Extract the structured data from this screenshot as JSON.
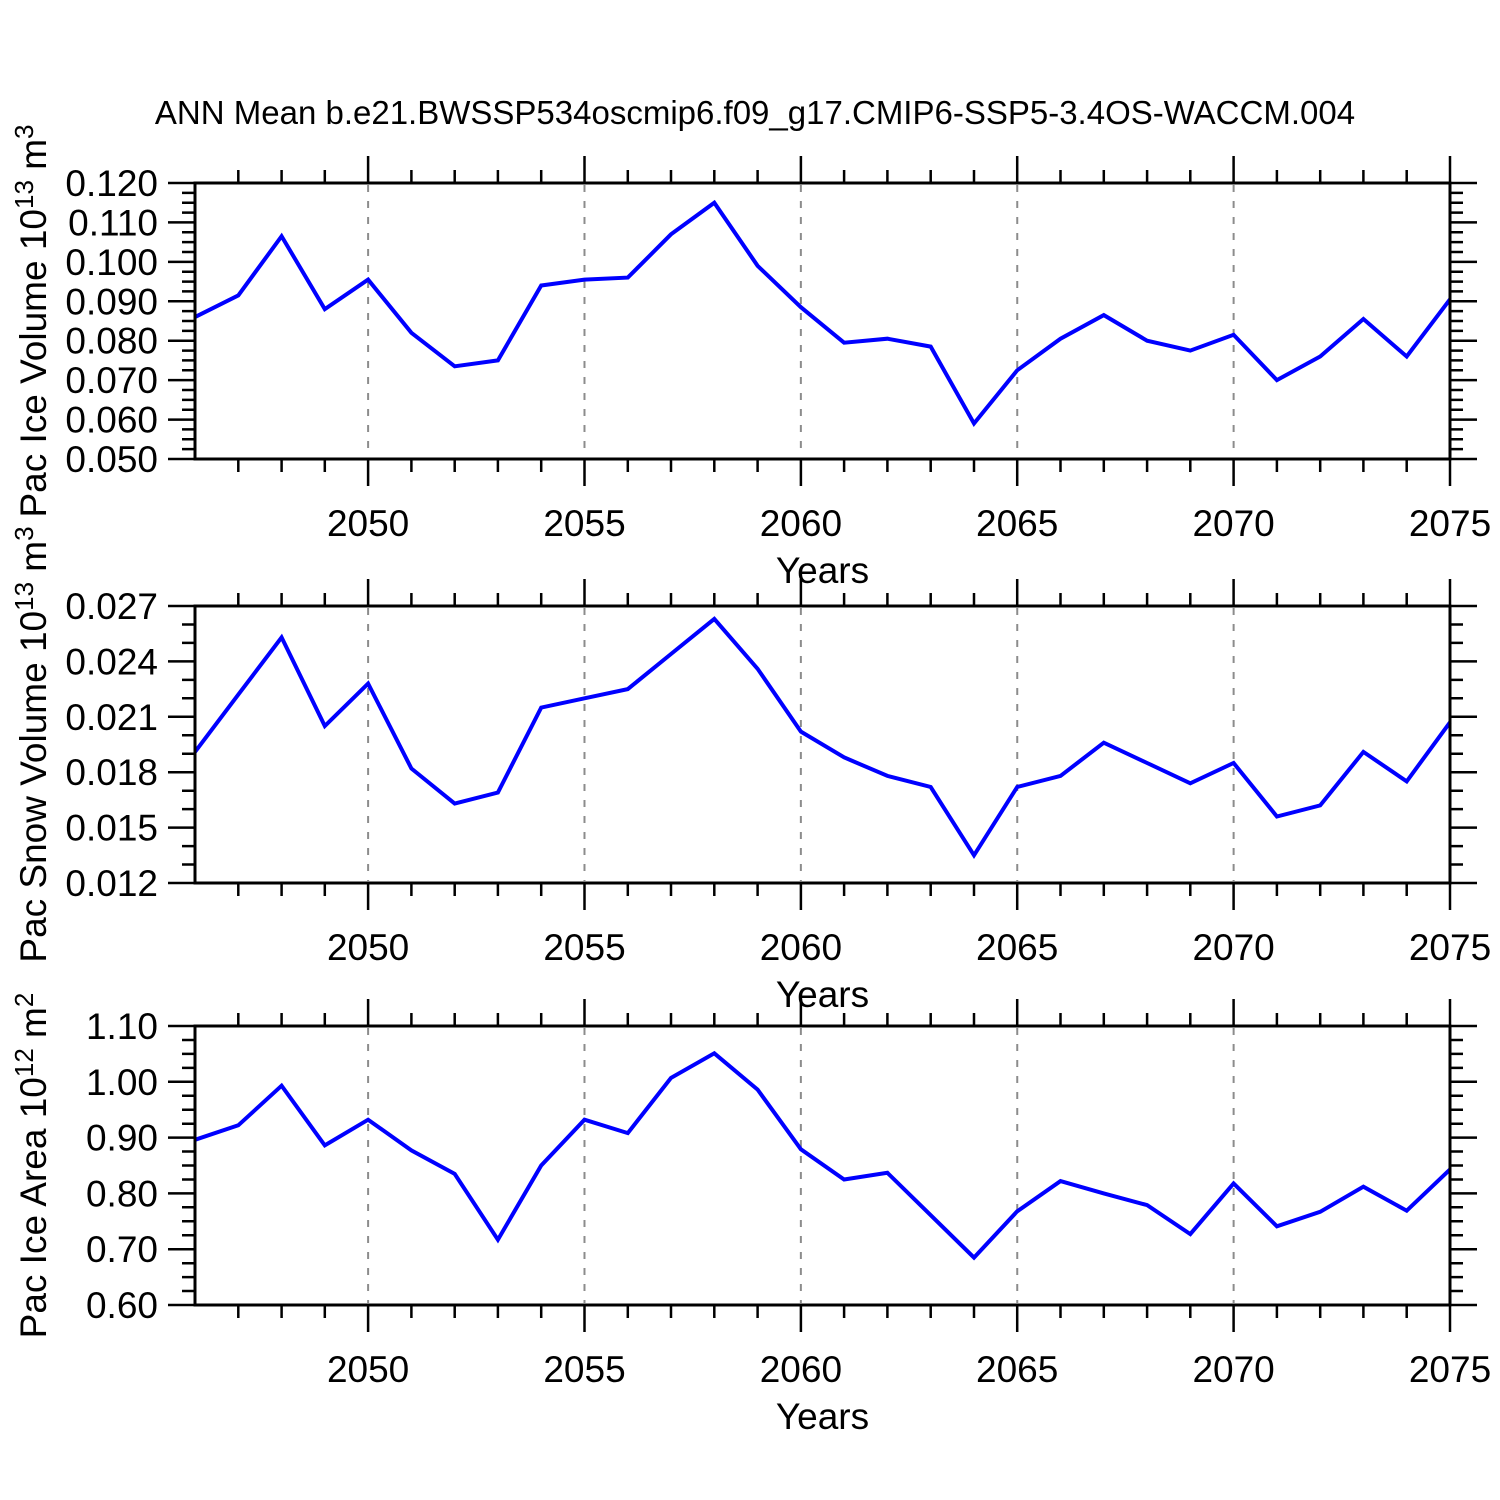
{
  "title": "ANN Mean b.e21.BWSSP534oscmip6.f09_g17.CMIP6-SSP5-3.4OS-WACCM.004",
  "xlabel": "Years",
  "x_tick_labels": [
    "2050",
    "2055",
    "2060",
    "2065",
    "2070",
    "2075"
  ],
  "colors": {
    "line": "#0000ff",
    "axis": "#000000",
    "grid": "#8c8c8c",
    "background": "#ffffff",
    "text": "#000000"
  },
  "chart_data": [
    {
      "type": "line",
      "name": "pac-ice-volume",
      "ylabel_text": "Pac Ice Volume 10¹³ m³",
      "ylabel": {
        "pre": "Pac Ice Volume 10",
        "sup": "13",
        "mid": " m",
        "sup2": "3"
      },
      "xlabel": "Years",
      "xlim": [
        2046,
        2075
      ],
      "ylim": [
        0.05,
        0.12
      ],
      "x_major_ticks": [
        2050,
        2055,
        2060,
        2065,
        2070,
        2075
      ],
      "grid_x": [
        2050,
        2055,
        2060,
        2065,
        2070
      ],
      "y_tick_labels": [
        "0.050",
        "0.060",
        "0.070",
        "0.080",
        "0.090",
        "0.100",
        "0.110",
        "0.120"
      ],
      "y_minor_per_major": 4,
      "x": [
        2046,
        2047,
        2048,
        2049,
        2050,
        2051,
        2052,
        2053,
        2054,
        2055,
        2056,
        2057,
        2058,
        2059,
        2060,
        2061,
        2062,
        2063,
        2064,
        2065,
        2066,
        2067,
        2068,
        2069,
        2070,
        2071,
        2072,
        2073,
        2074,
        2075
      ],
      "values": [
        0.086,
        0.0915,
        0.1065,
        0.088,
        0.0955,
        0.082,
        0.0735,
        0.075,
        0.094,
        0.0955,
        0.096,
        0.107,
        0.115,
        0.099,
        0.0885,
        0.0795,
        0.0805,
        0.0785,
        0.059,
        0.0725,
        0.0805,
        0.0865,
        0.08,
        0.0775,
        0.0815,
        0.07,
        0.076,
        0.0855,
        0.076,
        0.0905
      ]
    },
    {
      "type": "line",
      "name": "pac-snow-volume",
      "ylabel_text": "Pac Snow Volume 10¹³ m³",
      "ylabel": {
        "pre": "Pac Snow Volume 10",
        "sup": "13",
        "mid": " m",
        "sup2": "3"
      },
      "xlabel": "Years",
      "xlim": [
        2046,
        2075
      ],
      "ylim": [
        0.012,
        0.027
      ],
      "x_major_ticks": [
        2050,
        2055,
        2060,
        2065,
        2070,
        2075
      ],
      "grid_x": [
        2050,
        2055,
        2060,
        2065,
        2070
      ],
      "y_tick_labels": [
        "0.012",
        "0.015",
        "0.018",
        "0.021",
        "0.024",
        "0.027"
      ],
      "y_minor_per_major": 3,
      "x": [
        2046,
        2047,
        2048,
        2049,
        2050,
        2051,
        2052,
        2053,
        2054,
        2055,
        2056,
        2057,
        2058,
        2059,
        2060,
        2061,
        2062,
        2063,
        2064,
        2065,
        2066,
        2067,
        2068,
        2069,
        2070,
        2071,
        2072,
        2073,
        2074,
        2075
      ],
      "values": [
        0.0191,
        0.0222,
        0.0253,
        0.0205,
        0.0228,
        0.0182,
        0.0163,
        0.0169,
        0.0215,
        0.022,
        0.0225,
        0.0244,
        0.0263,
        0.0236,
        0.0202,
        0.0188,
        0.0178,
        0.0172,
        0.0135,
        0.0172,
        0.0178,
        0.0196,
        0.0185,
        0.0174,
        0.0185,
        0.0156,
        0.0162,
        0.0191,
        0.0175,
        0.0207
      ]
    },
    {
      "type": "line",
      "name": "pac-ice-area",
      "ylabel_text": "Pac Ice Area 10¹² m²",
      "ylabel": {
        "pre": "Pac Ice Area 10",
        "sup": "12",
        "mid": " m",
        "sup2": "2"
      },
      "xlabel": "Years",
      "xlim": [
        2046,
        2075
      ],
      "ylim": [
        0.6,
        1.1
      ],
      "x_major_ticks": [
        2050,
        2055,
        2060,
        2065,
        2070,
        2075
      ],
      "grid_x": [
        2050,
        2055,
        2060,
        2065,
        2070
      ],
      "y_tick_labels": [
        "0.60",
        "0.70",
        "0.80",
        "0.90",
        "1.00",
        "1.10"
      ],
      "y_minor_per_major": 4,
      "x": [
        2046,
        2047,
        2048,
        2049,
        2050,
        2051,
        2052,
        2053,
        2054,
        2055,
        2056,
        2057,
        2058,
        2059,
        2060,
        2061,
        2062,
        2063,
        2064,
        2065,
        2066,
        2067,
        2068,
        2069,
        2070,
        2071,
        2072,
        2073,
        2074,
        2075
      ],
      "values": [
        0.896,
        0.922,
        0.993,
        0.886,
        0.932,
        0.877,
        0.835,
        0.717,
        0.85,
        0.932,
        0.908,
        1.007,
        1.051,
        0.986,
        0.879,
        0.825,
        0.837,
        0.761,
        0.685,
        0.768,
        0.822,
        0.8,
        0.779,
        0.727,
        0.818,
        0.741,
        0.767,
        0.812,
        0.769,
        0.843
      ]
    }
  ]
}
